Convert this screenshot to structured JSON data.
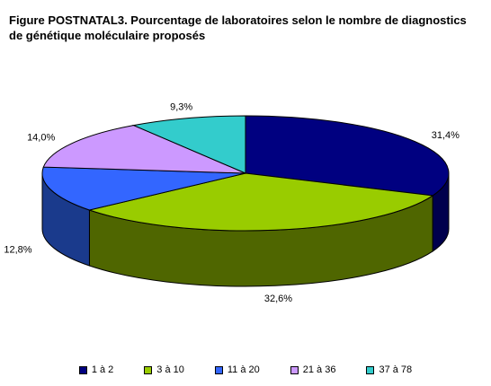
{
  "chart_data": {
    "type": "pie",
    "title": "Figure POSTNATAL3. Pourcentage de laboratoires selon le nombre de diagnostics de génétique moléculaire proposés",
    "categories": [
      "1 à 2",
      "3 à 10",
      "11 à 20",
      "21 à 36",
      "37 à 78"
    ],
    "values": [
      31.4,
      32.6,
      12.8,
      14.0,
      9.3
    ],
    "value_labels": [
      "31,4%",
      "32,6%",
      "12,8%",
      "14,0%",
      "9,3%"
    ],
    "colors": [
      "#000080",
      "#99CC00",
      "#3366FF",
      "#CC99FF",
      "#33CCCC"
    ],
    "side_colors": [
      "#00004d",
      "#4f6600",
      "#1a3a8c",
      "#7a5c99",
      "#1a7a7a"
    ],
    "legend_position": "bottom"
  }
}
